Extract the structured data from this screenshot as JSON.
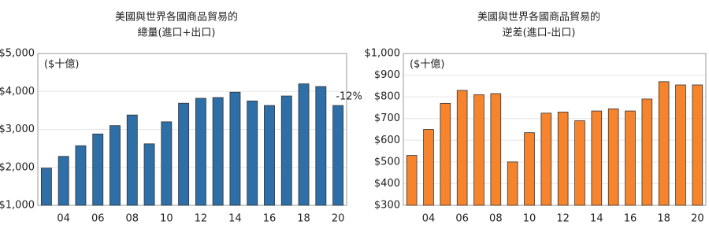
{
  "chart_data": [
    {
      "type": "bar",
      "title": "美國與世界各國商品貿易的",
      "subtitle": "總量(進口+出口)",
      "unit_label": "($十億)",
      "categories": [
        null,
        "04",
        null,
        "06",
        null,
        "08",
        null,
        "10",
        null,
        "12",
        null,
        "14",
        null,
        "16",
        null,
        "18",
        null,
        "20"
      ],
      "values": [
        1980,
        2290,
        2570,
        2880,
        3100,
        3380,
        2620,
        3200,
        3690,
        3820,
        3840,
        3980,
        3750,
        3630,
        3880,
        4200,
        4130,
        3630
      ],
      "color": "#2e6fa7",
      "annotation": "-12%",
      "ylim": [
        1000,
        5000
      ],
      "yticks": [
        {
          "value": 1000,
          "label": "$1,000"
        },
        {
          "value": 2000,
          "label": "$2,000"
        },
        {
          "value": 3000,
          "label": "$3,000"
        },
        {
          "value": 4000,
          "label": "$4,000"
        },
        {
          "value": 5000,
          "label": "$5,000"
        }
      ],
      "grid": true
    },
    {
      "type": "bar",
      "title": "美國與世界各國商品貿易的",
      "subtitle": "逆差(進口-出口)",
      "unit_label": "($十億)",
      "categories": [
        null,
        "04",
        null,
        "06",
        null,
        "08",
        null,
        "10",
        null,
        "12",
        null,
        "14",
        null,
        "16",
        null,
        "18",
        null,
        "20"
      ],
      "values": [
        530,
        650,
        770,
        830,
        810,
        815,
        500,
        635,
        725,
        730,
        690,
        735,
        745,
        735,
        790,
        870,
        855,
        855
      ],
      "color": "#f5842c",
      "ylim": [
        300,
        1000
      ],
      "yticks": [
        {
          "value": 300,
          "label": "$300"
        },
        {
          "value": 400,
          "label": "$400"
        },
        {
          "value": 500,
          "label": "$500"
        },
        {
          "value": 600,
          "label": "$600"
        },
        {
          "value": 700,
          "label": "$700"
        },
        {
          "value": 800,
          "label": "$800"
        },
        {
          "value": 900,
          "label": "$900"
        },
        {
          "value": 1000,
          "label": "$1,000"
        }
      ],
      "grid": true
    }
  ]
}
